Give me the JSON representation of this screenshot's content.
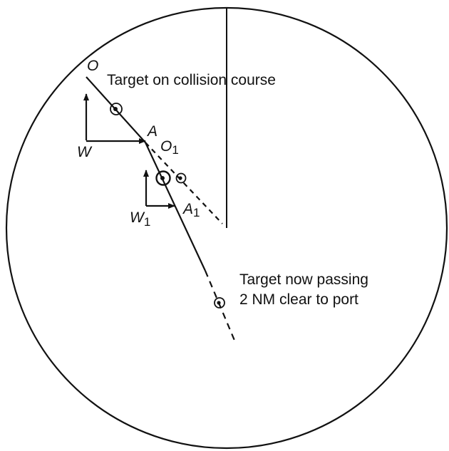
{
  "labels": {
    "o": "O",
    "a": "A",
    "w": "W",
    "o1_main": "O",
    "o1_sub": "1",
    "a1_main": "A",
    "a1_sub": "1",
    "w1_main": "W",
    "w1_sub": "1"
  },
  "annotations": {
    "collision": "Target on collision course",
    "passing_line1": "Target now passing",
    "passing_line2": "2 NM clear to port"
  }
}
